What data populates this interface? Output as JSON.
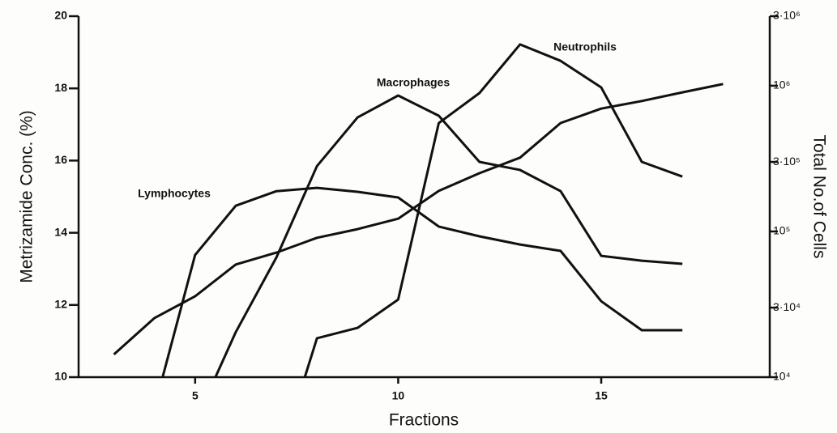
{
  "chart_data": {
    "type": "line",
    "x_label": "Fractions",
    "y_label": "Metrizamide Conc. (%)",
    "y2_label": "Total No.of Cells",
    "xlim": [
      2.13,
      19.15
    ],
    "xticks": [
      5,
      10,
      15
    ],
    "ylim": [
      10,
      20
    ],
    "yticks": [
      10,
      12,
      14,
      16,
      18,
      20
    ],
    "y2lim": [
      10000,
      3000000
    ],
    "y2log": true,
    "y2ticks": [
      {
        "value": 10000,
        "label": "10⁴"
      },
      {
        "value": 30000,
        "label": "3·10⁴"
      },
      {
        "value": 100000,
        "label": "10⁵"
      },
      {
        "value": 300000,
        "label": "3·10⁵"
      },
      {
        "value": 1000000,
        "label": "10⁶"
      },
      {
        "value": 3000000,
        "label": "3·10⁶"
      }
    ],
    "series": [
      {
        "color": "#111111",
        "x": [
          3,
          4,
          5,
          6,
          7,
          8,
          9,
          10,
          11,
          12,
          13,
          14,
          15,
          16,
          17,
          18
        ],
        "values": [
          10.63,
          11.64,
          12.24,
          13.12,
          13.45,
          13.86,
          14.1,
          14.39,
          15.16,
          15.65,
          16.08,
          17.04,
          17.44,
          17.65,
          17.89,
          18.12
        ]
      },
      {
        "name": "Lymphocytes",
        "color": "#111111",
        "axis": "y2",
        "x": [
          4.2,
          5,
          6,
          7,
          8,
          9,
          10,
          11,
          12,
          13,
          14,
          15,
          16,
          17
        ],
        "values": [
          10000,
          69000,
          150000,
          189000,
          199000,
          187000,
          171000,
          108000,
          92600,
          81300,
          73500,
          33200,
          21000,
          21000
        ]
      },
      {
        "name": "Macrophages",
        "color": "#111111",
        "axis": "y2",
        "x": [
          5.5,
          6,
          7,
          8,
          9,
          10,
          11,
          12,
          13,
          14,
          15,
          16,
          17
        ],
        "values": [
          10000,
          20400,
          66300,
          281000,
          606000,
          857000,
          622000,
          300000,
          264000,
          189000,
          68000,
          63000,
          59900
        ]
      },
      {
        "name": "Neutrophils",
        "color": "#111111",
        "axis": "y2",
        "x": [
          7.7,
          8,
          9,
          10,
          11,
          12,
          13,
          14,
          15,
          16,
          17
        ],
        "values": [
          10000,
          18500,
          21800,
          34100,
          554000,
          890000,
          1920000,
          1480000,
          974000,
          300000,
          238000
        ]
      }
    ]
  }
}
